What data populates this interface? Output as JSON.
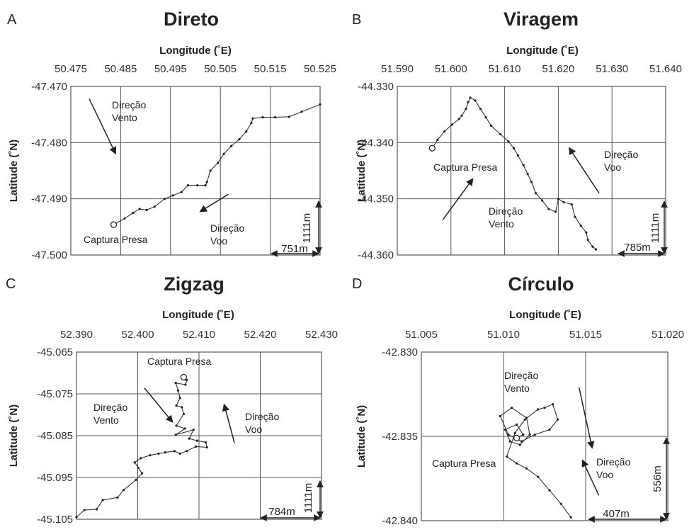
{
  "chart_data": [
    {
      "type": "line",
      "panel_label": "A",
      "title": "Direto",
      "xlabel": "Longitude (˚E)",
      "ylabel": "Latitude (˚N)",
      "xlim": [
        50.475,
        50.525
      ],
      "ylim": [
        -47.5,
        -47.47
      ],
      "xticks": [
        "50.475",
        "50.485",
        "50.495",
        "50.505",
        "50.515",
        "50.525"
      ],
      "yticks": [
        "-47.470",
        "-47.480",
        "-47.490",
        "-47.500"
      ],
      "grid": true,
      "track": [
        [
          50.4836,
          -47.4946
        ],
        [
          50.4858,
          -47.4935
        ],
        [
          50.4875,
          -47.4925
        ],
        [
          50.4888,
          -47.4918
        ],
        [
          50.4902,
          -47.492
        ],
        [
          50.4918,
          -47.4914
        ],
        [
          50.4938,
          -47.49
        ],
        [
          50.4955,
          -47.4894
        ],
        [
          50.4972,
          -47.4888
        ],
        [
          50.4985,
          -47.4876
        ],
        [
          50.5004,
          -47.4876
        ],
        [
          50.502,
          -47.4876
        ],
        [
          50.5023,
          -47.487
        ],
        [
          50.503,
          -47.485
        ],
        [
          50.5045,
          -47.4836
        ],
        [
          50.5057,
          -47.482
        ],
        [
          50.5072,
          -47.4806
        ],
        [
          50.5088,
          -47.4794
        ],
        [
          50.5102,
          -47.478
        ],
        [
          50.5112,
          -47.4765
        ],
        [
          50.5115,
          -47.4757
        ],
        [
          50.5135,
          -47.4755
        ],
        [
          50.516,
          -47.4755
        ],
        [
          50.5188,
          -47.4754
        ],
        [
          50.5213,
          -47.4745
        ],
        [
          50.525,
          -47.4732
        ]
      ],
      "start_marker": [
        50.4836,
        -47.4946
      ],
      "annotations": [
        {
          "text": "Direção",
          "line2": "Vento",
          "role": "wind"
        },
        {
          "text": "Direção",
          "line2": "Voo",
          "role": "flight"
        },
        {
          "text": "Captura Presa",
          "role": "capture"
        }
      ],
      "arrows": [
        {
          "name": "wind",
          "from": [
            50.4787,
            -47.4722
          ],
          "to": [
            50.484,
            -47.482
          ]
        },
        {
          "name": "flight",
          "from": [
            50.5066,
            -47.4892
          ],
          "to": [
            50.5009,
            -47.4923
          ]
        }
      ],
      "scale_x_label": "751m",
      "scale_y_label": "1111m"
    },
    {
      "type": "line",
      "panel_label": "B",
      "title": "Viragem",
      "xlabel": "Longitude (˚E)",
      "ylabel": "Latitude (˚N)",
      "xlim": [
        51.59,
        51.64
      ],
      "ylim": [
        -44.36,
        -44.33
      ],
      "xticks": [
        "51.590",
        "51.600",
        "51.610",
        "51.620",
        "51.630",
        "51.640"
      ],
      "yticks": [
        "-44.330",
        "-44.340",
        "-44.350",
        "-44.360"
      ],
      "grid": true,
      "track": [
        [
          51.5965,
          -44.341
        ],
        [
          51.5975,
          -44.3395
        ],
        [
          51.5988,
          -44.338
        ],
        [
          51.6002,
          -44.3368
        ],
        [
          51.6015,
          -44.3358
        ],
        [
          51.602,
          -44.3352
        ],
        [
          51.6028,
          -44.334
        ],
        [
          51.6032,
          -44.3328
        ],
        [
          51.6036,
          -44.332
        ],
        [
          51.6045,
          -44.3325
        ],
        [
          51.6055,
          -44.334
        ],
        [
          51.6065,
          -44.3355
        ],
        [
          51.6075,
          -44.337
        ],
        [
          51.6092,
          -44.3385
        ],
        [
          51.6107,
          -44.3398
        ],
        [
          51.6117,
          -44.341
        ],
        [
          51.6125,
          -44.3423
        ],
        [
          51.6135,
          -44.344
        ],
        [
          51.6143,
          -44.3456
        ],
        [
          51.615,
          -44.347
        ],
        [
          51.6158,
          -44.349
        ],
        [
          51.617,
          -44.3503
        ],
        [
          51.6182,
          -44.3518
        ],
        [
          51.6195,
          -44.3523
        ],
        [
          51.62,
          -44.35
        ],
        [
          51.621,
          -44.3506
        ],
        [
          51.6225,
          -44.351
        ],
        [
          51.6231,
          -44.3532
        ],
        [
          51.6242,
          -44.3548
        ],
        [
          51.6252,
          -44.356
        ],
        [
          51.6255,
          -44.3573
        ],
        [
          51.6264,
          -44.3585
        ],
        [
          51.627,
          -44.359
        ]
      ],
      "start_marker": [
        51.5965,
        -44.341
      ],
      "annotations": [
        {
          "text": "Captura Presa",
          "role": "capture"
        },
        {
          "text": "Direção",
          "line2": "Vento",
          "role": "wind"
        },
        {
          "text": "Direção",
          "line2": "Voo",
          "role": "flight"
        }
      ],
      "arrows": [
        {
          "name": "wind",
          "from": [
            51.5985,
            -44.3537
          ],
          "to": [
            51.6041,
            -44.3464
          ]
        },
        {
          "name": "flight",
          "from": [
            51.6276,
            -44.349
          ],
          "to": [
            51.622,
            -44.3409
          ]
        }
      ],
      "scale_x_label": "785m",
      "scale_y_label": "1111m"
    },
    {
      "type": "line",
      "panel_label": "C",
      "title": "Zigzag",
      "xlabel": "Longitude (˚E)",
      "ylabel": "Latitude (˚N)",
      "xlim": [
        52.39,
        52.43
      ],
      "ylim": [
        -45.105,
        -45.065
      ],
      "xticks": [
        "52.390",
        "52.400",
        "52.410",
        "52.420",
        "52.430"
      ],
      "yticks": [
        "-45.065",
        "-45.075",
        "-45.085",
        "-45.095",
        "-45.105"
      ],
      "grid": true,
      "track": [
        [
          52.4075,
          -45.071
        ],
        [
          52.408,
          -45.0717
        ],
        [
          52.4078,
          -45.0728
        ],
        [
          52.4062,
          -45.0724
        ],
        [
          52.4066,
          -45.0742
        ],
        [
          52.4069,
          -45.076
        ],
        [
          52.4063,
          -45.0778
        ],
        [
          52.4072,
          -45.0782
        ],
        [
          52.4075,
          -45.0798
        ],
        [
          52.4063,
          -45.0826
        ],
        [
          52.4077,
          -45.0833
        ],
        [
          52.4062,
          -45.0848
        ],
        [
          52.4091,
          -45.0836
        ],
        [
          52.4084,
          -45.0857
        ],
        [
          52.4097,
          -45.0862
        ],
        [
          52.4111,
          -45.0866
        ],
        [
          52.4113,
          -45.0878
        ],
        [
          52.4095,
          -45.0876
        ],
        [
          52.408,
          -45.0887
        ],
        [
          52.4069,
          -45.0893
        ],
        [
          52.406,
          -45.0887
        ],
        [
          52.4045,
          -45.089
        ],
        [
          52.4034,
          -45.0893
        ],
        [
          52.402,
          -45.0897
        ],
        [
          52.4005,
          -45.0904
        ],
        [
          52.3995,
          -45.0914
        ],
        [
          52.4001,
          -45.0927
        ],
        [
          52.4007,
          -45.094
        ],
        [
          52.3997,
          -45.0956
        ],
        [
          52.3977,
          -45.098
        ],
        [
          52.3967,
          -45.0998
        ],
        [
          52.3943,
          -45.1004
        ],
        [
          52.3933,
          -45.1026
        ],
        [
          52.3913,
          -45.1028
        ],
        [
          52.39,
          -45.1045
        ]
      ],
      "start_marker": [
        52.4075,
        -45.071
      ],
      "annotations": [
        {
          "text": "Captura Presa",
          "role": "capture"
        },
        {
          "text": "Direção",
          "line2": "Vento",
          "role": "wind"
        },
        {
          "text": "Direção",
          "line2": "Voo",
          "role": "flight"
        }
      ],
      "arrows": [
        {
          "name": "wind",
          "from": [
            52.4011,
            -45.0736
          ],
          "to": [
            52.4057,
            -45.0818
          ]
        },
        {
          "name": "flight",
          "from": [
            52.4158,
            -45.0868
          ],
          "to": [
            52.4141,
            -45.0775
          ]
        }
      ],
      "scale_x_label": "784m",
      "scale_y_label": "1111m"
    },
    {
      "type": "line",
      "panel_label": "D",
      "title": "Círculo",
      "xlabel": "Longitude (˚E)",
      "ylabel": "Latitude (˚N)",
      "xlim": [
        51.005,
        51.02
      ],
      "ylim": [
        -42.84,
        -42.83
      ],
      "xticks": [
        "51.005",
        "51.010",
        "51.015",
        "51.020"
      ],
      "yticks": [
        "-42.830",
        "-42.835",
        "-42.840"
      ],
      "grid": true,
      "track": [
        [
          51.0141,
          -42.8398
        ],
        [
          51.0135,
          -42.839
        ],
        [
          51.0128,
          -42.8382
        ],
        [
          51.0121,
          -42.8374
        ],
        [
          51.0114,
          -42.8369
        ],
        [
          51.0108,
          -42.8366
        ],
        [
          51.0102,
          -42.8362
        ],
        [
          51.0107,
          -42.8348
        ],
        [
          51.0113,
          -42.834
        ],
        [
          51.0121,
          -42.8334
        ],
        [
          51.0125,
          -42.8333
        ],
        [
          51.013,
          -42.8331
        ],
        [
          51.0133,
          -42.834
        ],
        [
          51.0128,
          -42.8346
        ],
        [
          51.0119,
          -42.8349
        ],
        [
          51.0111,
          -42.8353
        ],
        [
          51.0103,
          -42.8349
        ],
        [
          51.0098,
          -42.8338
        ],
        [
          51.0105,
          -42.8333
        ],
        [
          51.0114,
          -42.8339
        ],
        [
          51.0116,
          -42.8349
        ],
        [
          51.011,
          -42.8355
        ],
        [
          51.0104,
          -42.8353
        ],
        [
          51.0101,
          -42.8346
        ],
        [
          51.0108,
          -42.8343
        ],
        [
          51.0112,
          -42.8349
        ],
        [
          51.0108,
          -42.8351
        ]
      ],
      "start_marker": [
        51.0108,
        -42.8351
      ],
      "annotations": [
        {
          "text": "Direção",
          "line2": "Vento",
          "role": "wind"
        },
        {
          "text": "Captura Presa",
          "role": "capture"
        },
        {
          "text": "Direção",
          "line2": "Voo",
          "role": "flight"
        }
      ],
      "arrows": [
        {
          "name": "wind",
          "from": [
            51.0146,
            -42.8321
          ],
          "to": [
            51.0154,
            -42.8357
          ]
        },
        {
          "name": "flight",
          "from": [
            51.0158,
            -42.8385
          ],
          "to": [
            51.0148,
            -42.8364
          ]
        }
      ],
      "scale_x_label": "407m",
      "scale_y_label": "556m"
    }
  ]
}
